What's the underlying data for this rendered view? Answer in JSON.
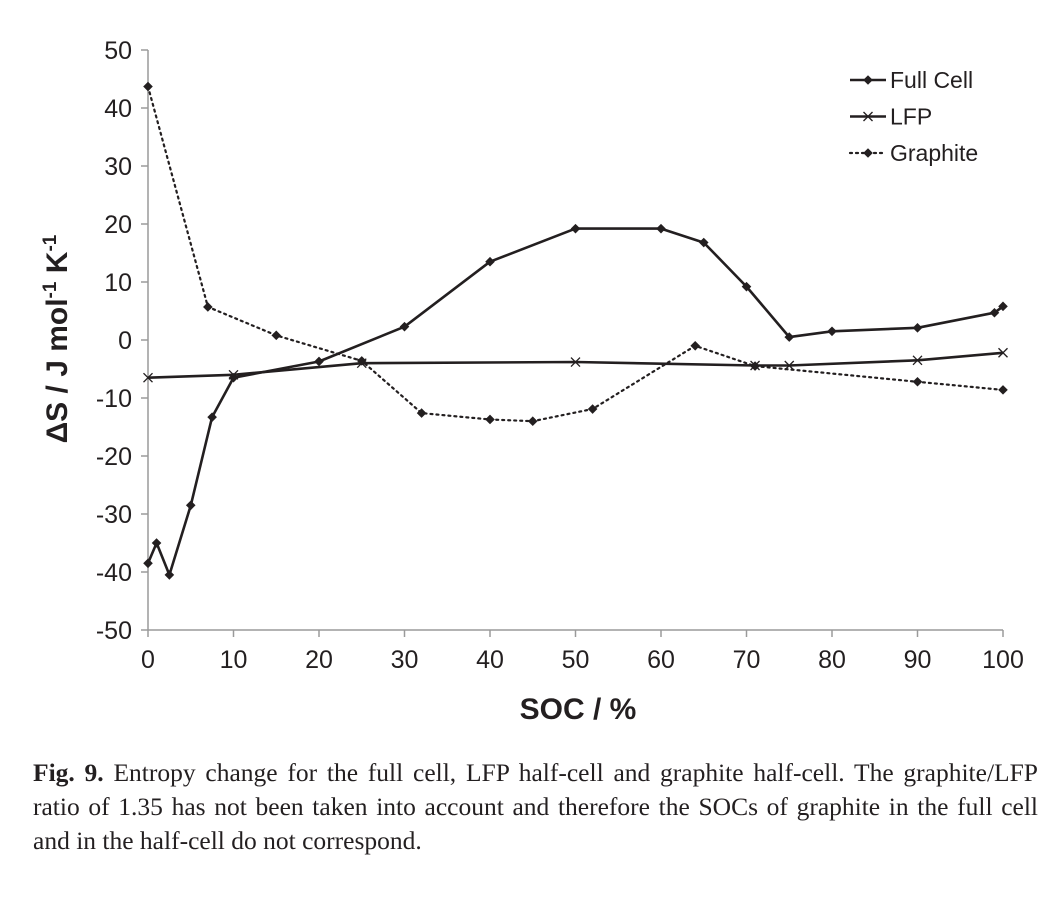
{
  "chart_data": {
    "type": "line",
    "xlabel": "SOC / %",
    "ylabel_parts": [
      "ΔS / J mol",
      "-1",
      " K",
      "-1"
    ],
    "xlim": [
      0,
      100
    ],
    "ylim": [
      -50,
      50
    ],
    "xticks": [
      0,
      10,
      20,
      30,
      40,
      50,
      60,
      70,
      80,
      90,
      100
    ],
    "yticks": [
      -50,
      -40,
      -30,
      -20,
      -10,
      0,
      10,
      20,
      30,
      40,
      50
    ],
    "grid": false,
    "legend_position": "top-right",
    "series": [
      {
        "name": "Full Cell",
        "style": "solid",
        "marker": "diamond",
        "points": [
          [
            0,
            -38.5
          ],
          [
            1,
            -35
          ],
          [
            2.5,
            -40.5
          ],
          [
            5,
            -28.5
          ],
          [
            7.5,
            -13.3
          ],
          [
            10,
            -6.5
          ],
          [
            20,
            -3.7
          ],
          [
            30,
            2.3
          ],
          [
            40,
            13.5
          ],
          [
            50,
            19.2
          ],
          [
            60,
            19.2
          ],
          [
            65,
            16.8
          ],
          [
            70,
            9.2
          ],
          [
            75,
            0.5
          ],
          [
            80,
            1.5
          ],
          [
            90,
            2.1
          ],
          [
            99,
            4.7
          ],
          [
            100,
            5.8
          ]
        ]
      },
      {
        "name": "LFP",
        "style": "solid",
        "marker": "x",
        "points": [
          [
            0,
            -6.5
          ],
          [
            10,
            -6
          ],
          [
            25,
            -4
          ],
          [
            50,
            -3.8
          ],
          [
            71,
            -4.4
          ],
          [
            75,
            -4.4
          ],
          [
            90,
            -3.5
          ],
          [
            100,
            -2.2
          ]
        ]
      },
      {
        "name": "Graphite",
        "style": "dotted",
        "marker": "diamond",
        "points": [
          [
            0,
            43.7
          ],
          [
            7,
            5.7
          ],
          [
            15,
            0.8
          ],
          [
            25,
            -3.6
          ],
          [
            32,
            -12.6
          ],
          [
            40,
            -13.7
          ],
          [
            45,
            -14
          ],
          [
            52,
            -11.9
          ],
          [
            64,
            -1
          ],
          [
            71,
            -4.5
          ],
          [
            90,
            -7.2
          ],
          [
            100,
            -8.6
          ]
        ]
      }
    ]
  },
  "caption": {
    "label": "Fig. 9.",
    "text": " Entropy change for the full cell, LFP half-cell and graphite half-cell. The graphite/LFP ratio of 1.35 has not been taken into account and therefore the SOCs of graphite in the full cell and in the half-cell do not correspond."
  }
}
